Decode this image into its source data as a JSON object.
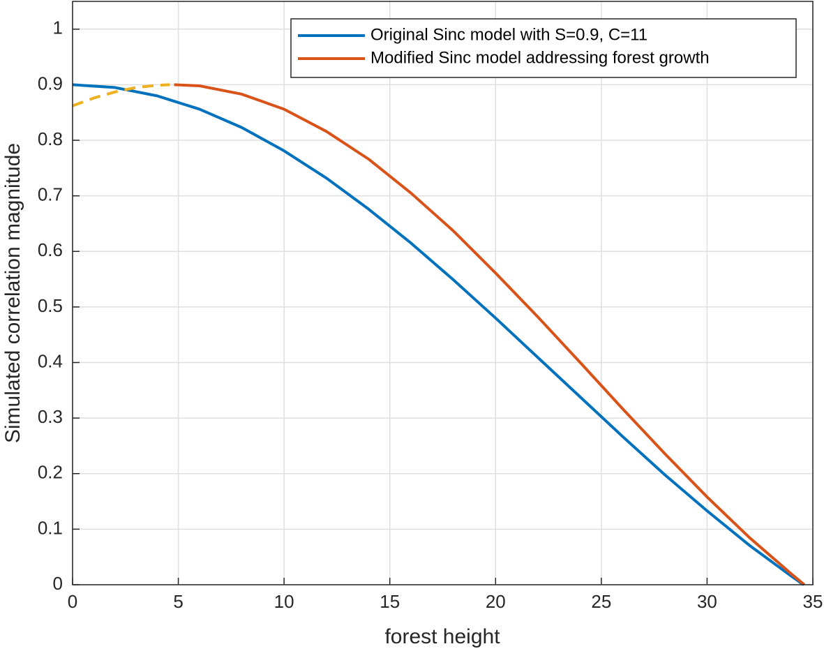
{
  "chart_data": {
    "type": "line",
    "xlabel": "forest height",
    "ylabel": "Simulated correlation magnitude",
    "xlim": [
      0,
      35
    ],
    "xticks": [
      0,
      5,
      10,
      15,
      20,
      25,
      30,
      35
    ],
    "ylim": [
      0,
      1.05
    ],
    "yticks": [
      0,
      0.1,
      0.2,
      0.3,
      0.4,
      0.5,
      0.6,
      0.7,
      0.8,
      0.9,
      1
    ],
    "grid": true,
    "legend": "upper right",
    "series": [
      {
        "name": "Original Sinc model with S=0.9, C=11",
        "color": "#0072BD",
        "x": [
          0,
          2,
          4,
          6,
          8,
          10,
          12,
          14,
          16,
          18,
          20,
          22,
          24,
          26,
          28,
          30,
          32,
          34,
          34.56
        ],
        "values": [
          0.9,
          0.895,
          0.88,
          0.856,
          0.823,
          0.781,
          0.732,
          0.676,
          0.615,
          0.549,
          0.48,
          0.409,
          0.338,
          0.267,
          0.198,
          0.133,
          0.071,
          0.015,
          0
        ]
      },
      {
        "name": "Modified Sinc model addressing forest growth",
        "color": "#D95319",
        "x": [
          4.8,
          6,
          8,
          10,
          12,
          14,
          16,
          18,
          20,
          22,
          24,
          26,
          28,
          30,
          32,
          34,
          34.6
        ],
        "values": [
          0.9,
          0.898,
          0.883,
          0.856,
          0.816,
          0.766,
          0.705,
          0.637,
          0.561,
          0.482,
          0.4,
          0.317,
          0.236,
          0.158,
          0.085,
          0.019,
          0
        ]
      },
      {
        "color": "#EDB120",
        "linestyle": "dashed",
        "x": [
          0,
          1,
          2,
          3,
          4,
          4.6
        ],
        "values": [
          0.862,
          0.876,
          0.887,
          0.895,
          0.899,
          0.9
        ]
      }
    ]
  }
}
